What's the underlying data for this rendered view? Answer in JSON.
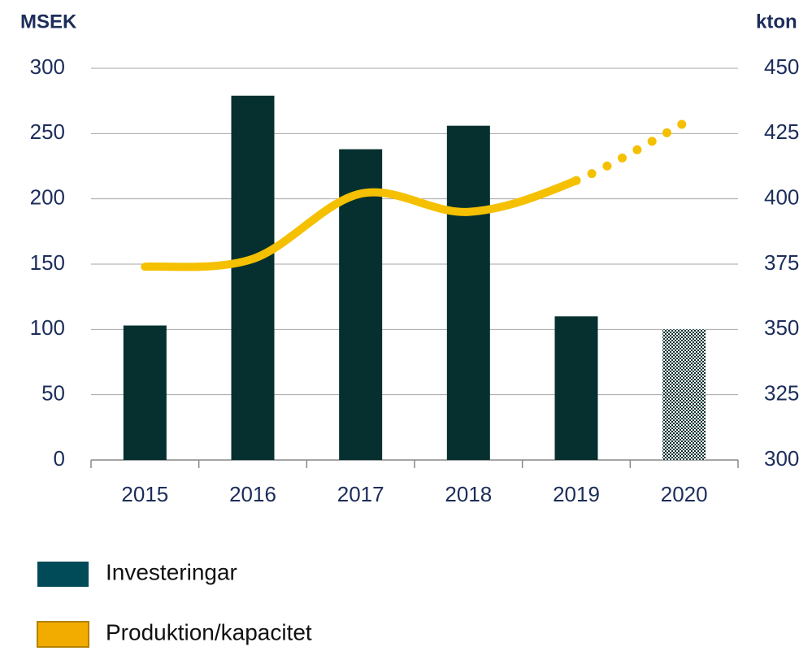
{
  "chart_data": {
    "type": "bar_line",
    "y_title": "MSEK",
    "y2_title": "kton",
    "categories": [
      "2015",
      "2016",
      "2017",
      "2018",
      "2019",
      "2020"
    ],
    "series": [
      {
        "name": "Investeringar",
        "color": "#05302f",
        "type": "bar",
        "values": [
          103,
          279,
          238,
          256,
          110,
          100
        ],
        "hatched_index": 5
      },
      {
        "name": "Produktion/kapacitet",
        "color": "#f5c000",
        "type": "line",
        "axis": "y2",
        "values": [
          374,
          377,
          402,
          395,
          407,
          429
        ],
        "dotted_from_index": 4
      }
    ],
    "ylim": [
      0,
      300
    ],
    "yticks": [
      0,
      50,
      100,
      150,
      200,
      250,
      300
    ],
    "y2lim": [
      300,
      450
    ],
    "y2ticks": [
      300,
      325,
      350,
      375,
      400,
      425,
      450
    ],
    "grid": true
  }
}
